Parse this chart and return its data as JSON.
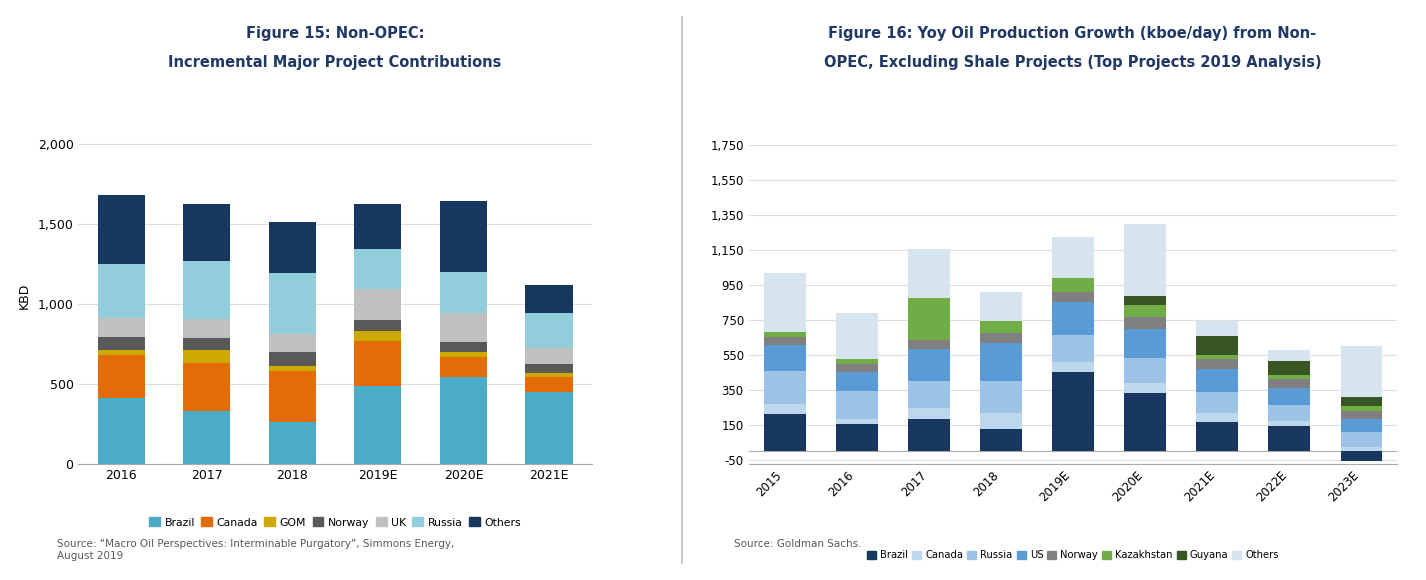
{
  "fig15": {
    "title_line1": "Figure 15: Non-OPEC:",
    "title_line2": "Incremental Major Project Contributions",
    "ylabel": "KBD",
    "ylim": [
      0,
      2100
    ],
    "yticks": [
      0,
      500,
      1000,
      1500,
      2000
    ],
    "categories": [
      "2016",
      "2017",
      "2018",
      "2019E",
      "2020E",
      "2021E"
    ],
    "series": {
      "Brazil": [
        410,
        330,
        260,
        490,
        540,
        450
      ],
      "Canada": [
        270,
        300,
        320,
        280,
        130,
        90
      ],
      "GOM": [
        30,
        80,
        30,
        60,
        30,
        30
      ],
      "Norway": [
        80,
        75,
        90,
        70,
        60,
        55
      ],
      "UK": [
        120,
        120,
        110,
        190,
        180,
        100
      ],
      "Russia": [
        340,
        360,
        380,
        250,
        260,
        220
      ],
      "Others": [
        430,
        355,
        320,
        280,
        440,
        175
      ]
    },
    "colors": {
      "Brazil": "#4BACC6",
      "Canada": "#E36C09",
      "GOM": "#CCA800",
      "Norway": "#595959",
      "UK": "#C0C0C0",
      "Russia": "#92CDDC",
      "Others": "#17375E"
    },
    "source": "Source: “Macro Oil Perspectives: Interminable Purgatory”, Simmons Energy,\nAugust 2019"
  },
  "fig16": {
    "title_line1": "Figure 16: Yoy Oil Production Growth (kboe/day) from Non-",
    "title_line2": "OPEC, Excluding Shale Projects (Top Projects 2019 Analysis)",
    "ylabel": "",
    "ylim": [
      -75,
      1850
    ],
    "yticks": [
      -50,
      150,
      350,
      550,
      750,
      950,
      1150,
      1350,
      1550,
      1750
    ],
    "ytick_labels": [
      "-50",
      "150",
      "350",
      "550",
      "750",
      "950",
      "1,150",
      "1,350",
      "1,550",
      "1,750"
    ],
    "categories": [
      "2015",
      "2016",
      "2017",
      "2018",
      "2019E",
      "2020E",
      "2021E",
      "2022E",
      "2023E"
    ],
    "series": {
      "Brazil": [
        210,
        155,
        185,
        125,
        450,
        330,
        165,
        140,
        -60
      ],
      "Canada": [
        60,
        30,
        60,
        90,
        60,
        60,
        50,
        30,
        20
      ],
      "Russia": [
        185,
        155,
        155,
        185,
        155,
        140,
        120,
        90,
        90
      ],
      "US": [
        150,
        110,
        185,
        215,
        185,
        165,
        135,
        100,
        70
      ],
      "Norway": [
        45,
        45,
        50,
        60,
        60,
        70,
        55,
        50,
        50
      ],
      "Kazakhstan": [
        30,
        30,
        240,
        70,
        80,
        70,
        25,
        25,
        25
      ],
      "Guyana": [
        0,
        0,
        0,
        0,
        0,
        50,
        105,
        80,
        55
      ],
      "Others": [
        340,
        265,
        280,
        165,
        235,
        415,
        90,
        65,
        290
      ]
    },
    "colors": {
      "Brazil": "#17375E",
      "Canada": "#BDD7EE",
      "Russia": "#9DC3E6",
      "US": "#5B9BD5",
      "Norway": "#808080",
      "Kazakhstan": "#70AD47",
      "Guyana": "#375623",
      "Others": "#D6E4F0"
    },
    "source": "Source: Goldman Sachs."
  },
  "bg_color": "#FFFFFF",
  "title_color": "#1F3864",
  "source_color": "#595959",
  "divider_color": "#C0C0C0"
}
